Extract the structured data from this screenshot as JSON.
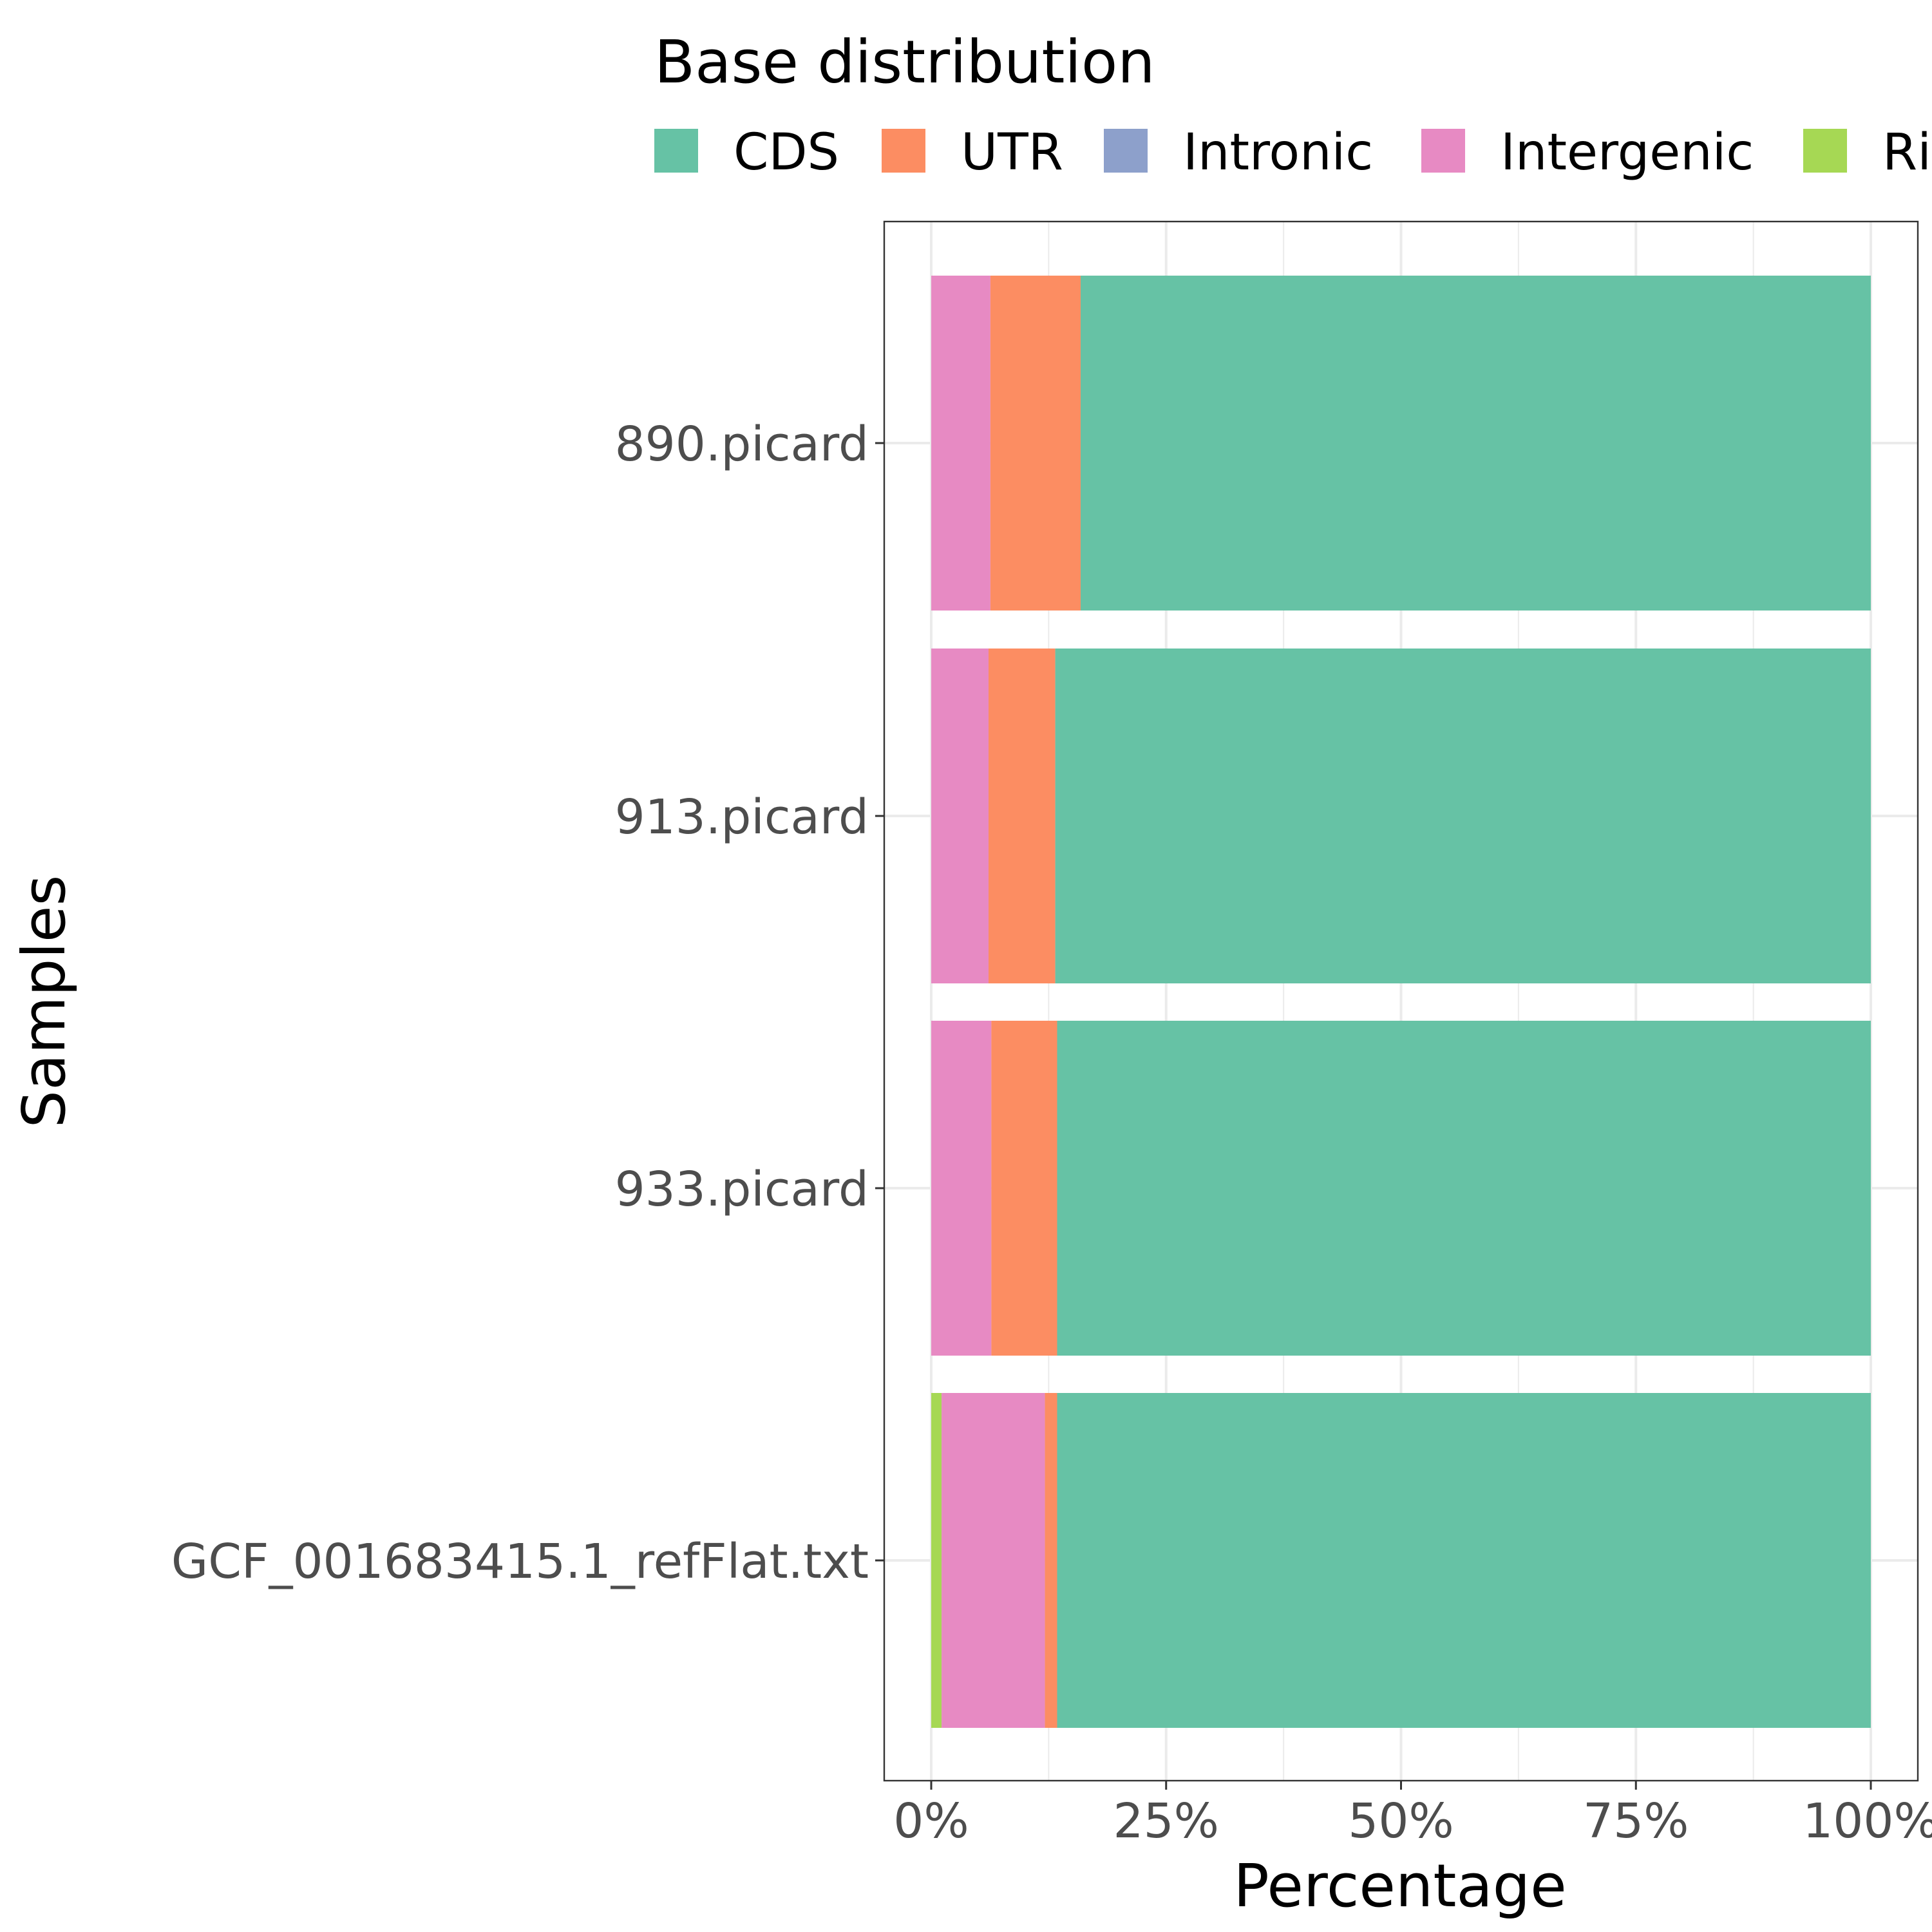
{
  "chart_data": {
    "type": "bar",
    "orientation": "horizontal",
    "stacked": true,
    "title": "",
    "xlabel": "Percentage",
    "ylabel": "Samples",
    "xlim": [
      0,
      100
    ],
    "x_ticks": [
      0,
      25,
      50,
      75,
      100
    ],
    "x_tick_labels": [
      "0%",
      "25%",
      "50%",
      "75%",
      "100%"
    ],
    "grid": true,
    "legend": {
      "title": "Base distribution",
      "position": "top",
      "entries": [
        "CDS",
        "UTR",
        "Intronic",
        "Intergenic",
        "Ri"
      ]
    },
    "categories": [
      "890.picard",
      "913.picard",
      "933.picard",
      "GCF_001683415.1_refFlat.txt"
    ],
    "series": [
      {
        "name": "CDS",
        "color": "#66C2A5",
        "values": [
          84.1,
          86.8,
          86.6,
          86.6
        ]
      },
      {
        "name": "UTR",
        "color": "#FC8D62",
        "values": [
          9.6,
          7.1,
          7.0,
          1.3
        ]
      },
      {
        "name": "Intronic",
        "color": "#8DA0CB",
        "values": [
          0,
          0,
          0,
          0
        ]
      },
      {
        "name": "Intergenic",
        "color": "#E78AC3",
        "values": [
          6.3,
          6.1,
          6.4,
          11.0
        ]
      },
      {
        "name": "Ribosomal",
        "color": "#A6D854",
        "values": [
          0,
          0,
          0,
          1.1
        ]
      }
    ]
  }
}
